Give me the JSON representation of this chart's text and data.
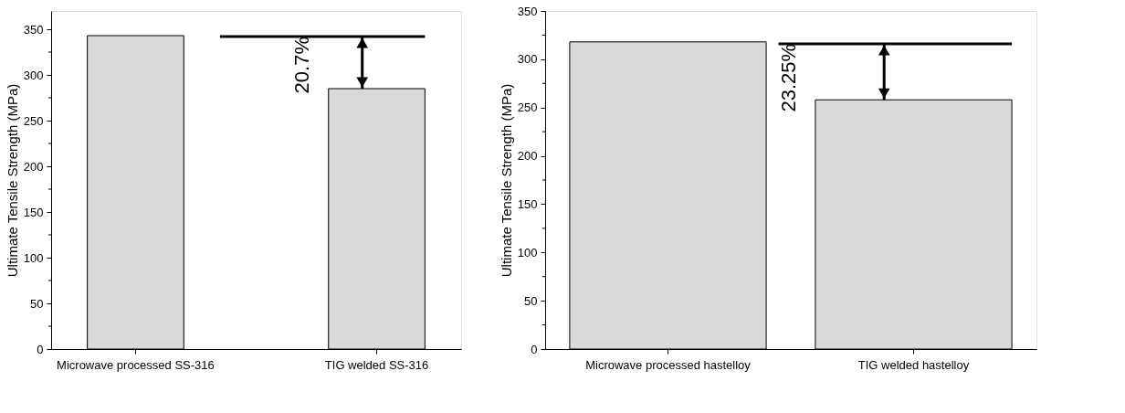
{
  "chart_data": [
    {
      "type": "bar",
      "categories": [
        "Microwave processed SS-316",
        "TIG welded SS-316"
      ],
      "values": [
        343,
        285
      ],
      "color": "#d9d9d9",
      "ylabel": "Ultimate Tensile Strength (MPa)",
      "ylim": [
        0,
        370
      ],
      "yticks": [
        0,
        {
          "value": 25,
          "label": null
        },
        50,
        {
          "value": 75,
          "label": null
        },
        100,
        {
          "value": 125,
          "label": null
        },
        150,
        {
          "value": 175,
          "label": null
        },
        200,
        {
          "value": 225,
          "label": null
        },
        250,
        {
          "value": 275,
          "label": null
        },
        300,
        {
          "value": 325,
          "label": null
        },
        350
      ],
      "ref_lines": [
        {
          "axis": "y",
          "value": 342,
          "color": "#000000"
        }
      ],
      "annotations": [
        "20.7%"
      ]
    },
    {
      "type": "bar",
      "categories": [
        "Microwave processed hastelloy",
        "TIG welded hastelloy"
      ],
      "values": [
        318,
        258
      ],
      "color": "#000000",
      "ylabel": "Ultimate Tensile Strength (MPa)",
      "ylim": [
        0,
        350
      ],
      "yticks": [
        0,
        {
          "value": 25,
          "label": null
        },
        50,
        {
          "value": 75,
          "label": null
        },
        100,
        {
          "value": 125,
          "label": null
        },
        150,
        {
          "value": 175,
          "label": null
        },
        200,
        {
          "value": 225,
          "label": null
        },
        250,
        {
          "value": 275,
          "label": null
        },
        300,
        {
          "value": 325,
          "label": null
        },
        350
      ],
      "ref_lines": [
        {
          "axis": "y",
          "value": 316,
          "color": "#000000"
        }
      ],
      "annotations": [
        "23.25%"
      ]
    }
  ]
}
